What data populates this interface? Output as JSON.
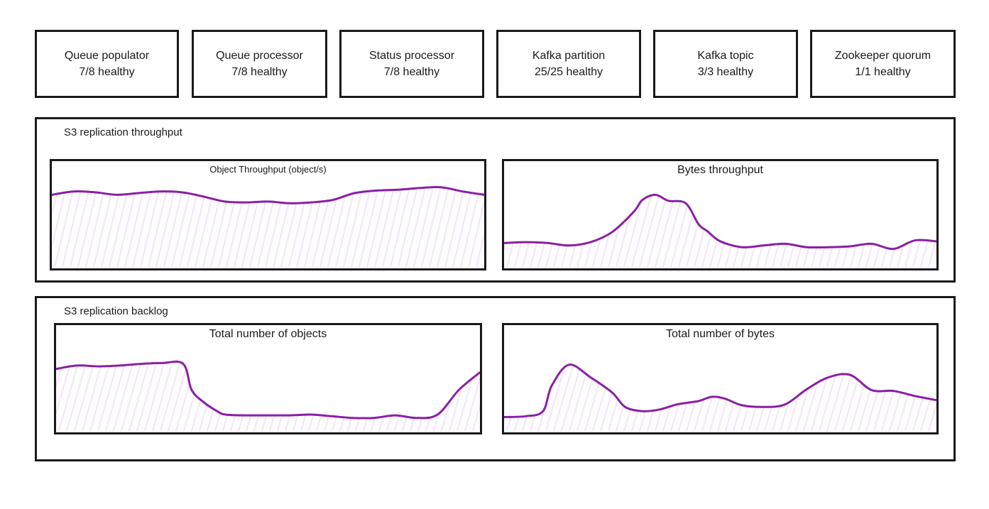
{
  "stat_cards": [
    {
      "name": "Queue populator",
      "status": "7/8 healthy"
    },
    {
      "name": "Queue processor",
      "status": "7/8 healthy"
    },
    {
      "name": "Status processor",
      "status": "7/8 healthy"
    },
    {
      "name": "Kafka partition",
      "status": "25/25 healthy"
    },
    {
      "name": "Kafka topic",
      "status": "3/3 healthy"
    },
    {
      "name": "Zookeeper quorum",
      "status": "1/1 healthy"
    }
  ],
  "sections": {
    "throughput": {
      "title": "S3 replication throughput",
      "object_chart_title": "Object Throughput (object/s)",
      "bytes_chart_title": "Bytes throughput"
    },
    "backlog": {
      "title": "S3 replication backlog",
      "objects_chart_title": "Total number of objects",
      "bytes_chart_title": "Total number of bytes"
    }
  },
  "colors": {
    "line": "#8a1fa6",
    "fill": "#f3e6fa",
    "border": "#1a1a1a"
  },
  "chart_data": [
    {
      "type": "area",
      "title": "Object Throughput (object/s)",
      "x": [
        0,
        5,
        10,
        15,
        20,
        25,
        30,
        35,
        40,
        45,
        50,
        55,
        60,
        65,
        70,
        75,
        80,
        85,
        90,
        95,
        100
      ],
      "values": [
        0.82,
        0.86,
        0.85,
        0.82,
        0.84,
        0.86,
        0.85,
        0.8,
        0.74,
        0.73,
        0.74,
        0.72,
        0.73,
        0.76,
        0.84,
        0.87,
        0.88,
        0.9,
        0.91,
        0.86,
        0.82
      ],
      "ylim": [
        0,
        1
      ]
    },
    {
      "type": "area",
      "title": "Bytes throughput",
      "x": [
        0,
        5,
        10,
        15,
        20,
        25,
        30,
        32,
        35,
        38,
        42,
        45,
        47,
        50,
        55,
        60,
        65,
        70,
        75,
        80,
        85,
        90,
        95,
        100
      ],
      "values": [
        0.25,
        0.26,
        0.25,
        0.22,
        0.26,
        0.38,
        0.62,
        0.76,
        0.82,
        0.75,
        0.72,
        0.47,
        0.39,
        0.27,
        0.2,
        0.22,
        0.24,
        0.2,
        0.2,
        0.21,
        0.24,
        0.18,
        0.28,
        0.27
      ],
      "ylim": [
        0,
        1
      ]
    },
    {
      "type": "area",
      "title": "Total number of objects",
      "x": [
        0,
        5,
        10,
        15,
        20,
        25,
        30,
        32,
        35,
        38,
        40,
        45,
        50,
        55,
        60,
        65,
        70,
        75,
        80,
        85,
        90,
        95,
        100
      ],
      "values": [
        0.7,
        0.74,
        0.73,
        0.74,
        0.76,
        0.77,
        0.76,
        0.45,
        0.3,
        0.2,
        0.16,
        0.15,
        0.15,
        0.15,
        0.16,
        0.14,
        0.12,
        0.12,
        0.15,
        0.12,
        0.16,
        0.45,
        0.66
      ],
      "ylim": [
        0,
        1
      ]
    },
    {
      "type": "area",
      "title": "Total number of bytes",
      "x": [
        0,
        5,
        9,
        11,
        15,
        20,
        25,
        28,
        32,
        36,
        40,
        45,
        48,
        51,
        55,
        60,
        65,
        70,
        75,
        80,
        85,
        90,
        95,
        100
      ],
      "values": [
        0.13,
        0.14,
        0.2,
        0.5,
        0.75,
        0.6,
        0.42,
        0.25,
        0.2,
        0.22,
        0.28,
        0.32,
        0.37,
        0.35,
        0.27,
        0.25,
        0.28,
        0.46,
        0.6,
        0.63,
        0.45,
        0.44,
        0.38,
        0.33
      ],
      "ylim": [
        0,
        1
      ]
    }
  ]
}
